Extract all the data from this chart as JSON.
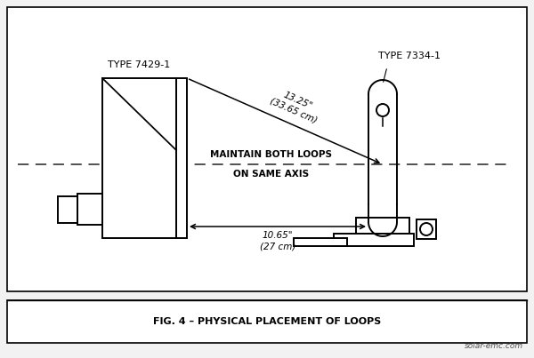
{
  "bg_color": "#f2f2f2",
  "diagram_bg": "#ffffff",
  "line_color": "#000000",
  "title_bottom": "FIG. 4 – PHYSICAL PLACEMENT OF LOOPS",
  "watermark": "solar-emc.com",
  "label_left": "TYPE 7429-1",
  "label_right": "TYPE 7334-1",
  "dim_label_top_line1": "13.25\"",
  "dim_label_top_line2": "(33.65 cm)",
  "dim_label_bot_line1": "10.65\"",
  "dim_label_bot_line2": "(27 cm)",
  "axis_label_line1": "MAINTAIN BOTH LOOPS",
  "axis_label_line2": "ON SAME AXIS",
  "font_family": "DejaVu Sans"
}
